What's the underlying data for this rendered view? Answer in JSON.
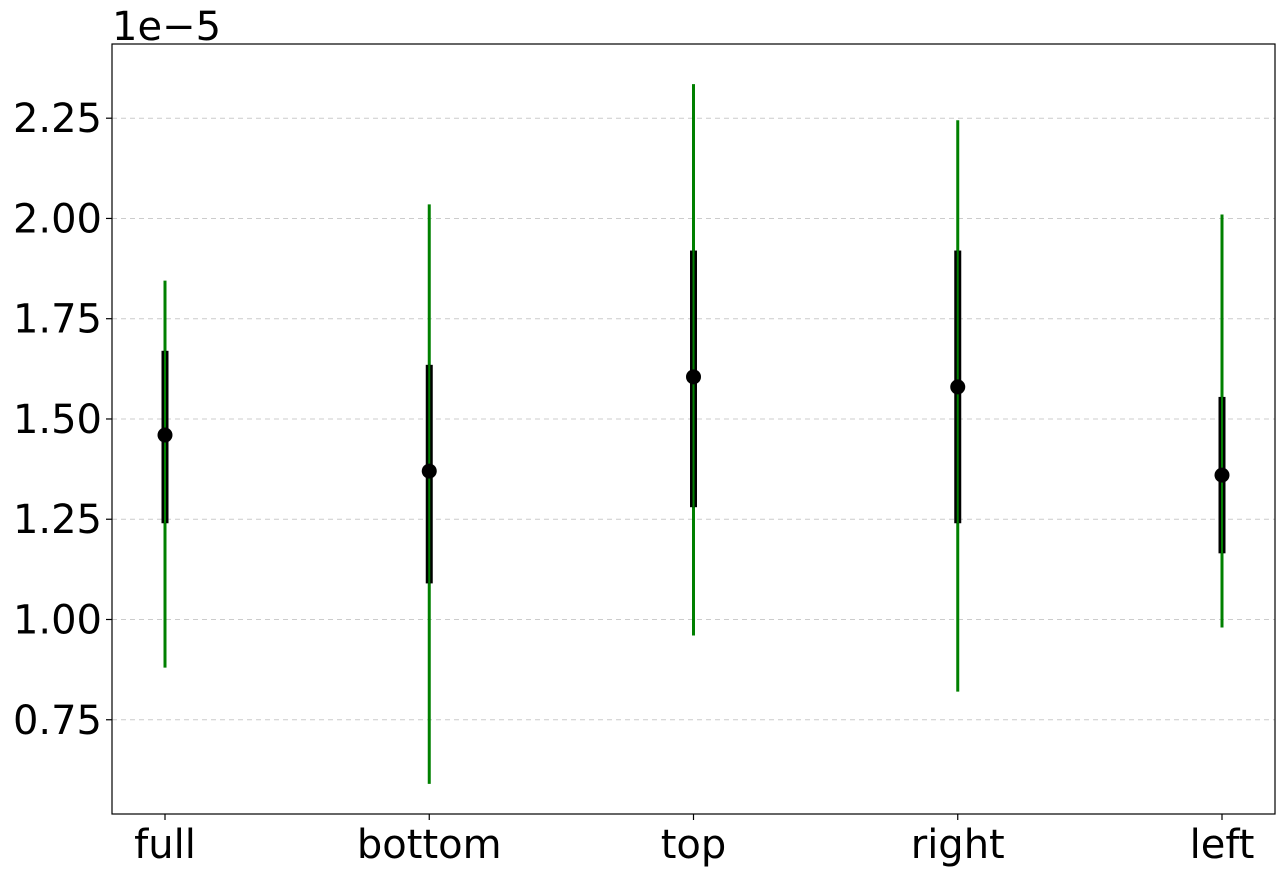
{
  "chart_data": {
    "type": "errorbar",
    "title": "",
    "xlabel": "",
    "ylabel": "",
    "offset_text": "1e−5",
    "scale": 1e-05,
    "categories": [
      "full",
      "bottom",
      "top",
      "right",
      "left"
    ],
    "values": [
      1.46,
      1.37,
      1.605,
      1.58,
      1.36
    ],
    "inner_low": [
      1.24,
      1.09,
      1.28,
      1.24,
      1.165
    ],
    "inner_high": [
      1.67,
      1.635,
      1.92,
      1.92,
      1.555
    ],
    "outer_low": [
      0.88,
      0.59,
      0.96,
      0.82,
      0.98
    ],
    "outer_high": [
      1.845,
      2.035,
      2.335,
      2.245,
      2.01
    ],
    "yticks": [
      0.75,
      1.0,
      1.25,
      1.5,
      1.75,
      2.0,
      2.25
    ],
    "ytick_labels": [
      "0.75",
      "1.00",
      "1.25",
      "1.50",
      "1.75",
      "2.00",
      "2.25"
    ],
    "ylim": [
      0.515,
      2.435
    ],
    "grid": "y-dashed",
    "colors": {
      "outer_bar": "#008000",
      "inner_bar": "#000000",
      "marker": "#000000",
      "grid": "#cccccc"
    }
  }
}
